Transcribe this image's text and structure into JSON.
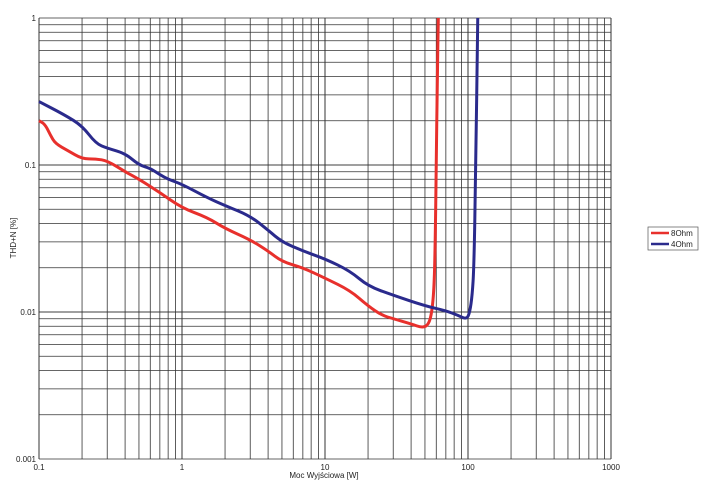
{
  "chart_data": {
    "type": "line",
    "title": "",
    "xlabel": "Moc Wyjściowa [W]",
    "ylabel": "THD+N [%]",
    "xscale": "log",
    "yscale": "log",
    "xlim": [
      0.1,
      1000
    ],
    "ylim": [
      0.001,
      1
    ],
    "grid": true,
    "legend_position": "right",
    "x_ticks": [
      "0.1",
      "1",
      "10",
      "100",
      "1000"
    ],
    "y_ticks": [
      "0.001",
      "0.01",
      "0.1",
      "1"
    ],
    "x_tick_values": [
      0.1,
      1,
      10,
      100,
      1000
    ],
    "y_tick_values": [
      0.001,
      0.01,
      0.1,
      1
    ],
    "series": [
      {
        "name": "8Ohm",
        "color": "#e8302c",
        "x": [
          0.1,
          0.11,
          0.12,
          0.13,
          0.16,
          0.2,
          0.25,
          0.3,
          0.4,
          0.5,
          0.7,
          1,
          1.5,
          2,
          3,
          4,
          5,
          7,
          10,
          15,
          20,
          25,
          30,
          40,
          48,
          53,
          56,
          58,
          59,
          60,
          61,
          62
        ],
        "y": [
          0.2,
          0.19,
          0.16,
          0.14,
          0.125,
          0.11,
          0.11,
          0.107,
          0.09,
          0.08,
          0.065,
          0.051,
          0.044,
          0.037,
          0.031,
          0.026,
          0.022,
          0.02,
          0.017,
          0.014,
          0.011,
          0.0095,
          0.009,
          0.0083,
          0.0078,
          0.0082,
          0.01,
          0.015,
          0.03,
          0.1,
          0.4,
          1
        ]
      },
      {
        "name": "4Ohm",
        "color": "#2a2a8c",
        "x": [
          0.1,
          0.15,
          0.2,
          0.25,
          0.3,
          0.4,
          0.5,
          0.6,
          0.7,
          0.8,
          1,
          1.5,
          2,
          3,
          4,
          5,
          7,
          10,
          15,
          20,
          30,
          50,
          70,
          85,
          98,
          103,
          107,
          110,
          113,
          117
        ],
        "y": [
          0.27,
          0.22,
          0.185,
          0.14,
          0.13,
          0.12,
          0.1,
          0.095,
          0.086,
          0.08,
          0.074,
          0.06,
          0.053,
          0.045,
          0.036,
          0.03,
          0.026,
          0.023,
          0.019,
          0.015,
          0.013,
          0.011,
          0.0102,
          0.0095,
          0.0089,
          0.01,
          0.013,
          0.02,
          0.08,
          1
        ]
      }
    ]
  }
}
